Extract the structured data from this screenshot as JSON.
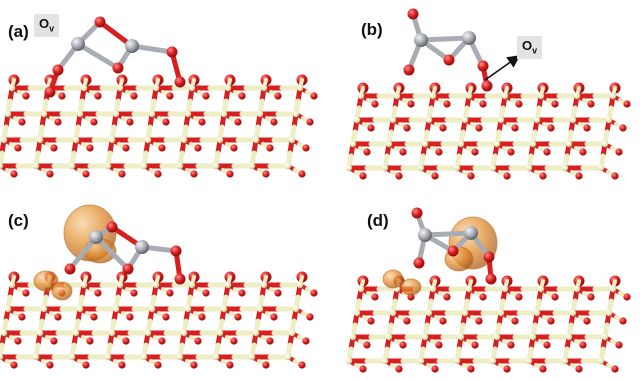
{
  "panels": [
    {
      "label": "(a)",
      "tag": "O",
      "tag_sub": "v"
    },
    {
      "label": "(b)",
      "tag": "O",
      "tag_sub": "v"
    },
    {
      "label": "(c)"
    },
    {
      "label": "(d)"
    }
  ],
  "colors": {
    "oxygen": "#d81e1e",
    "oxygen_dark": "#8e0c0c",
    "metal": "#eeeec4",
    "metal_dark": "#b9b98c",
    "adatom": "#a9adb3",
    "density": "#e08a28",
    "arrow": "#111111"
  }
}
